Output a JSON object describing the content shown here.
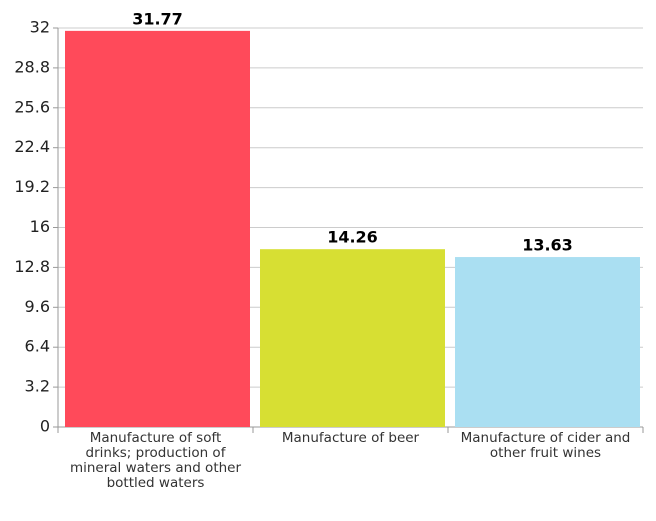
{
  "chart_data": {
    "type": "bar",
    "categories": [
      "Manufacture of soft drinks; production of mineral waters and other bottled waters",
      "Manufacture of beer",
      "Manufacture of cider and other fruit wines"
    ],
    "values": [
      31.77,
      14.26,
      13.63
    ],
    "colors": [
      "#ff4a5a",
      "#d7df33",
      "#aadff2"
    ],
    "ylim": [
      0,
      32
    ],
    "yticks": [
      0,
      3.2,
      6.4,
      9.6,
      12.8,
      16,
      19.2,
      22.4,
      25.6,
      28.8,
      32
    ],
    "grid": true
  }
}
